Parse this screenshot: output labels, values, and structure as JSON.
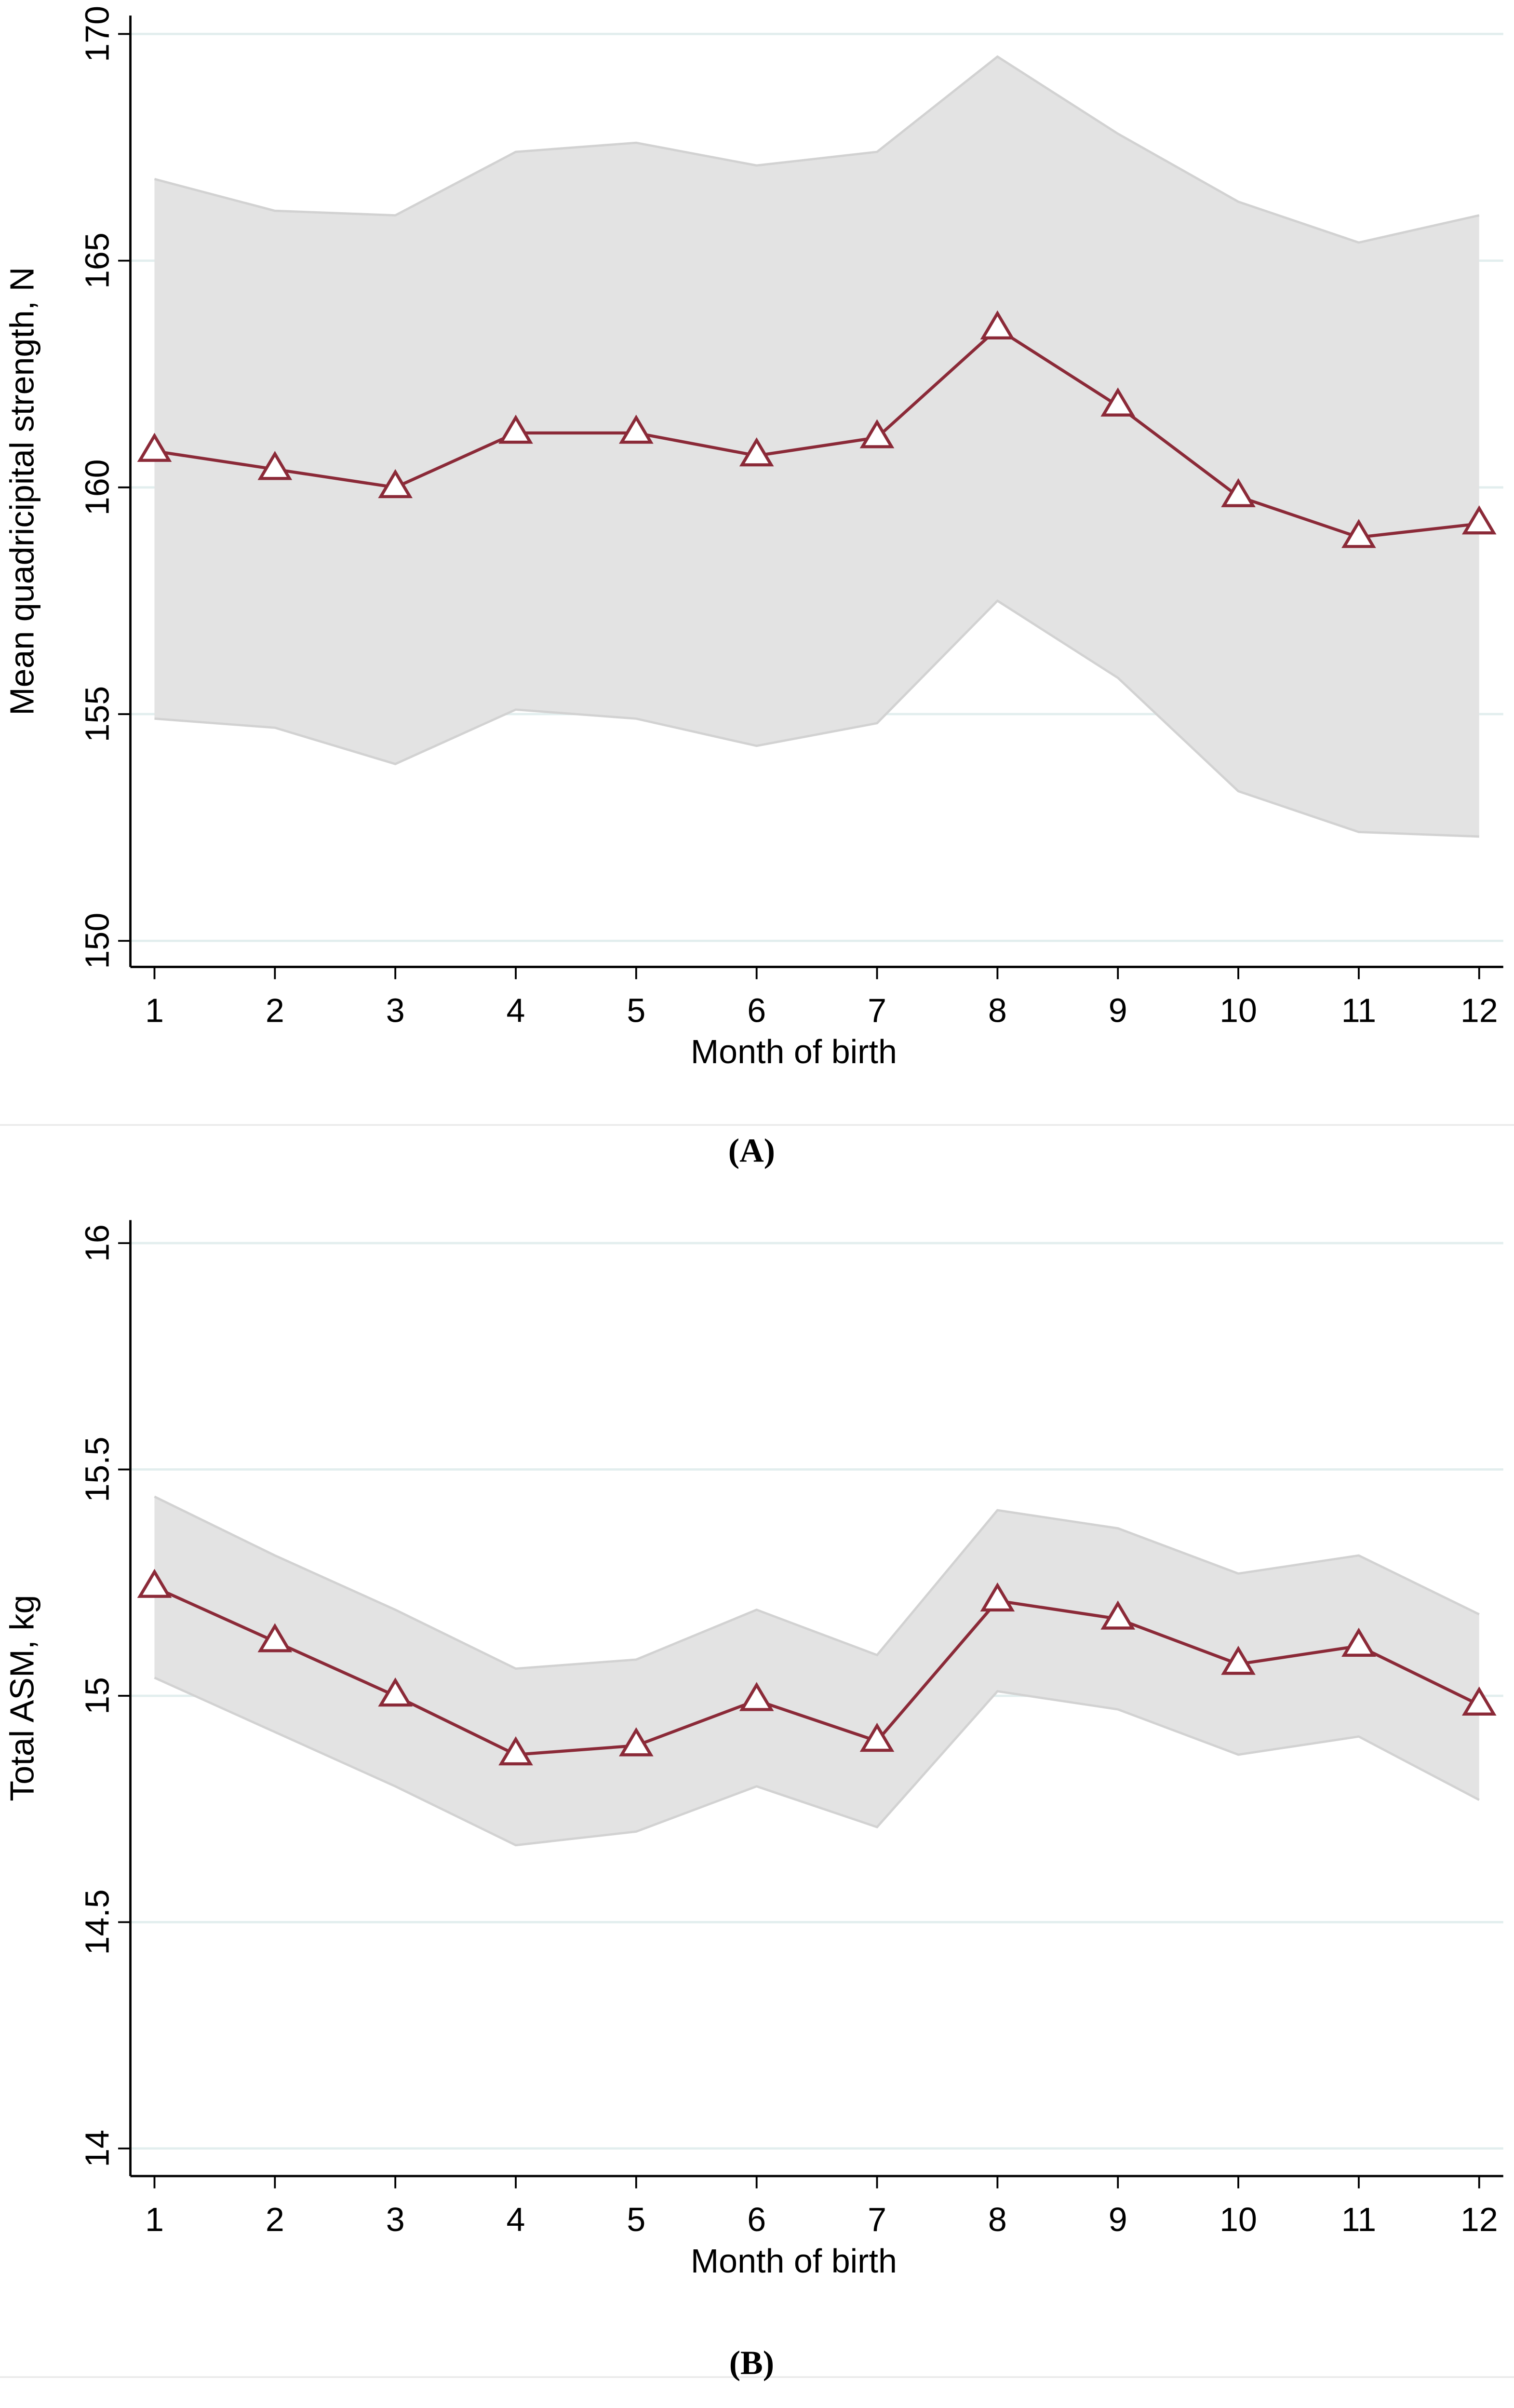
{
  "chart_data": [
    {
      "type": "line",
      "label": "(A)",
      "xlabel": "Month of birth",
      "ylabel": "Mean quadricipital strength, N",
      "x": [
        1,
        2,
        3,
        4,
        5,
        6,
        7,
        8,
        9,
        10,
        11,
        12
      ],
      "xlim": [
        0.8,
        12.2
      ],
      "xticks": [
        1,
        2,
        3,
        4,
        5,
        6,
        7,
        8,
        9,
        10,
        11,
        12
      ],
      "ylim": [
        150,
        170
      ],
      "yticks": [
        150,
        155,
        160,
        165,
        170
      ],
      "grid": true,
      "series": [
        {
          "color": "#8b2a38",
          "values": [
            160.8,
            160.4,
            160.0,
            161.2,
            161.2,
            160.7,
            161.1,
            163.5,
            161.8,
            159.8,
            158.9,
            159.2
          ]
        }
      ],
      "band": {
        "color": "#e3e3e3",
        "upper": [
          166.8,
          166.1,
          166.0,
          167.4,
          167.6,
          167.1,
          167.4,
          169.5,
          167.8,
          166.3,
          165.4,
          166.0
        ],
        "lower": [
          154.9,
          154.7,
          153.9,
          155.1,
          154.9,
          154.3,
          154.8,
          157.5,
          155.8,
          153.3,
          152.4,
          152.3
        ]
      }
    },
    {
      "type": "line",
      "label": "(B)",
      "xlabel": "Month of birth",
      "ylabel": "Total ASM, kg",
      "x": [
        1,
        2,
        3,
        4,
        5,
        6,
        7,
        8,
        9,
        10,
        11,
        12
      ],
      "xlim": [
        0.8,
        12.2
      ],
      "xticks": [
        1,
        2,
        3,
        4,
        5,
        6,
        7,
        8,
        9,
        10,
        11,
        12
      ],
      "ylim": [
        14,
        16
      ],
      "yticks": [
        14,
        14.5,
        15,
        15.5,
        16
      ],
      "grid": true,
      "series": [
        {
          "color": "#8b2a38",
          "values": [
            15.24,
            15.12,
            15.0,
            14.87,
            14.89,
            14.99,
            14.9,
            15.21,
            15.17,
            15.07,
            15.11,
            14.98
          ]
        }
      ],
      "band": {
        "color": "#e3e3e3",
        "upper": [
          15.44,
          15.31,
          15.19,
          15.06,
          15.08,
          15.19,
          15.09,
          15.41,
          15.37,
          15.27,
          15.31,
          15.18
        ],
        "lower": [
          15.04,
          14.92,
          14.8,
          14.67,
          14.7,
          14.8,
          14.71,
          15.01,
          14.97,
          14.87,
          14.91,
          14.77
        ]
      }
    }
  ]
}
